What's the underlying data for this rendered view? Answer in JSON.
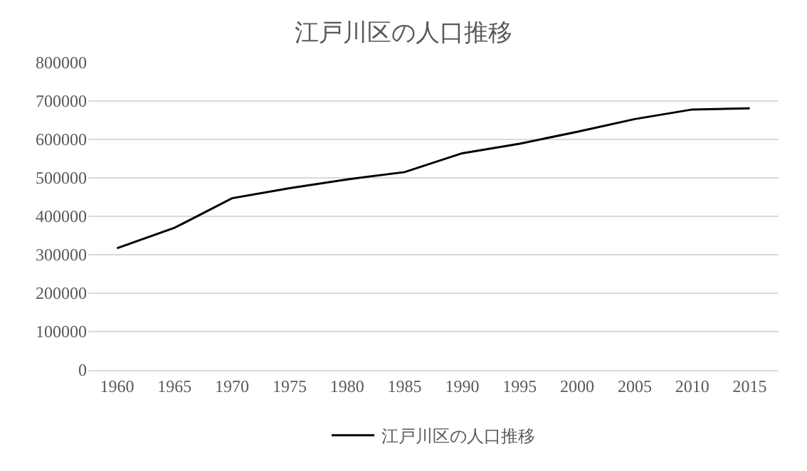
{
  "chart_data": {
    "type": "line",
    "title": "江戸川区の人口推移",
    "categories": [
      "1960",
      "1965",
      "1970",
      "1975",
      "1980",
      "1985",
      "1990",
      "1995",
      "2000",
      "2005",
      "2010",
      "2015"
    ],
    "series": [
      {
        "name": "江戸川区の人口推移",
        "color": "#000000",
        "values": [
          317000,
          370000,
          447000,
          473000,
          496000,
          515000,
          564000,
          589000,
          620000,
          653000,
          678000,
          681000
        ]
      }
    ],
    "ylim": [
      0,
      800000
    ],
    "yticks": [
      0,
      100000,
      200000,
      300000,
      400000,
      500000,
      600000,
      700000,
      800000
    ],
    "grid": "y",
    "legend": "bottom",
    "marker": "none",
    "line_style": "solid"
  }
}
